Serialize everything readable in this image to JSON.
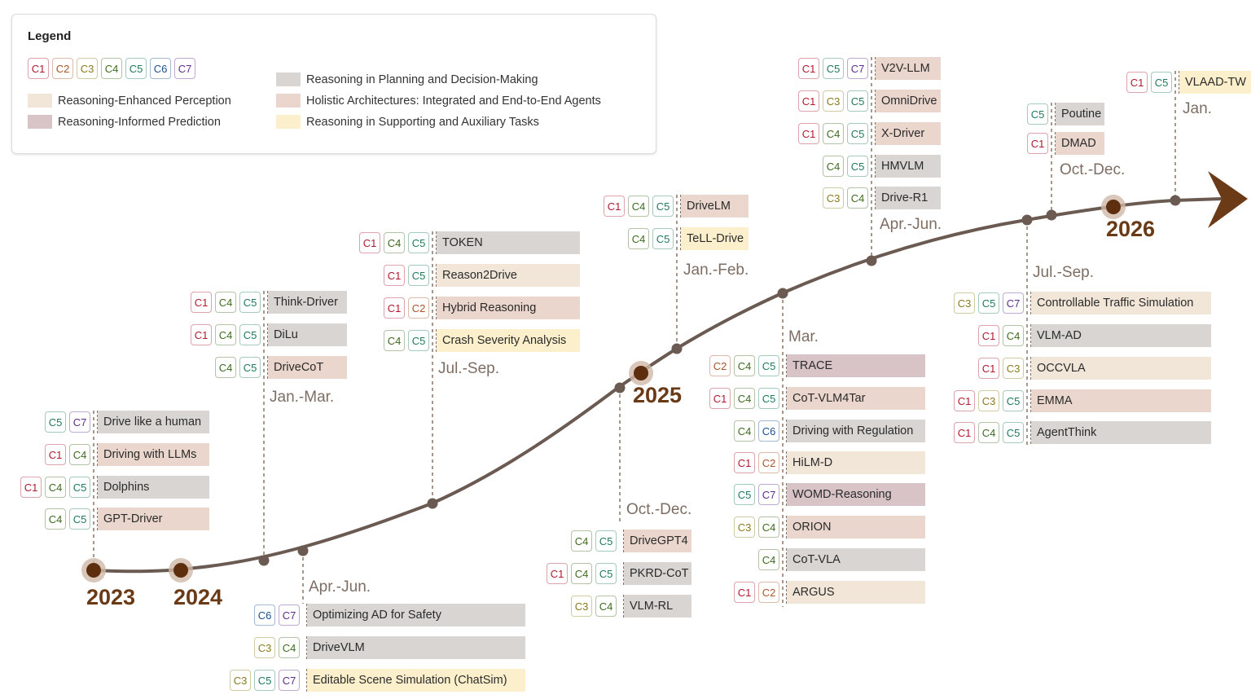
{
  "legend": {
    "title": "Legend",
    "chips": [
      "C1",
      "C2",
      "C3",
      "C4",
      "C5",
      "C6",
      "C7"
    ],
    "categories": [
      {
        "label": "Reasoning-Enhanced Perception",
        "color": "#f1e6d8"
      },
      {
        "label": "Reasoning-Informed Prediction",
        "color": "#d8c3c7"
      },
      {
        "label": "Reasoning in Planning and Decision-Making",
        "color": "#d9d5d2"
      },
      {
        "label": "Holistic Architectures: Integrated and End-to-End Agents",
        "color": "#ead6cc"
      },
      {
        "label": "Reasoning in Supporting and Auxiliary Tasks",
        "color": "#fcf0cc"
      }
    ]
  },
  "chip_colors": {
    "C1": "#b01a2e",
    "C2": "#a8552a",
    "C3": "#8a7a1f",
    "C4": "#3e6b1e",
    "C5": "#1f7a5a",
    "C6": "#1e4f8c",
    "C7": "#5c2e8c"
  },
  "years": [
    "2023",
    "2024",
    "2025",
    "2026"
  ],
  "periods": {
    "p2024a": "Jan.-Mar.",
    "p2024b": "Apr.-Jun.",
    "p2024c": "Jul.-Sep.",
    "p2024d": "Oct.-Dec.",
    "p2025a": "Jan.-Feb.",
    "p2025b": "Mar.",
    "p2025c": "Apr.-Jun.",
    "p2025d": "Jul.-Sep.",
    "p2025e": "Oct.-Dec.",
    "p2026a": "Jan."
  },
  "entries": [
    {
      "name": "Drive like a human",
      "tags": [
        "C5",
        "C7"
      ],
      "category": 2
    },
    {
      "name": "Driving with LLMs",
      "tags": [
        "C1",
        "C4"
      ],
      "category": 3
    },
    {
      "name": "Dolphins",
      "tags": [
        "C1",
        "C4",
        "C5"
      ],
      "category": 2
    },
    {
      "name": "GPT-Driver",
      "tags": [
        "C4",
        "C5"
      ],
      "category": 3
    },
    {
      "name": "Think-Driver",
      "tags": [
        "C1",
        "C4",
        "C5"
      ],
      "category": 2
    },
    {
      "name": "DiLu",
      "tags": [
        "C1",
        "C4",
        "C5"
      ],
      "category": 2
    },
    {
      "name": "DriveCoT",
      "tags": [
        "C4",
        "C5"
      ],
      "category": 3
    },
    {
      "name": "Optimizing AD for Safety",
      "tags": [
        "C6",
        "C7"
      ],
      "category": 2
    },
    {
      "name": "DriveVLM",
      "tags": [
        "C3",
        "C4"
      ],
      "category": 2
    },
    {
      "name": "Editable Scene Simulation (ChatSim)",
      "tags": [
        "C3",
        "C5",
        "C7"
      ],
      "category": 4
    },
    {
      "name": "TOKEN",
      "tags": [
        "C1",
        "C4",
        "C5"
      ],
      "category": 2
    },
    {
      "name": "Reason2Drive",
      "tags": [
        "C1",
        "C5"
      ],
      "category": 0
    },
    {
      "name": "Hybrid Reasoning",
      "tags": [
        "C1",
        "C2"
      ],
      "category": 3
    },
    {
      "name": "Crash Severity Analysis",
      "tags": [
        "C4",
        "C5"
      ],
      "category": 4
    },
    {
      "name": "DriveGPT4",
      "tags": [
        "C4",
        "C5"
      ],
      "category": 3
    },
    {
      "name": "PKRD-CoT",
      "tags": [
        "C1",
        "C4",
        "C5"
      ],
      "category": 2
    },
    {
      "name": "VLM-RL",
      "tags": [
        "C3",
        "C4"
      ],
      "category": 2
    },
    {
      "name": "DriveLM",
      "tags": [
        "C1",
        "C4",
        "C5"
      ],
      "category": 3
    },
    {
      "name": "TeLL-Drive",
      "tags": [
        "C4",
        "C5"
      ],
      "category": 4
    },
    {
      "name": "TRACE",
      "tags": [
        "C2",
        "C4",
        "C5"
      ],
      "category": 1
    },
    {
      "name": "CoT-VLM4Tar",
      "tags": [
        "C1",
        "C4",
        "C5"
      ],
      "category": 3
    },
    {
      "name": "Driving with Regulation",
      "tags": [
        "C4",
        "C6"
      ],
      "category": 2
    },
    {
      "name": "HiLM-D",
      "tags": [
        "C1",
        "C2"
      ],
      "category": 0
    },
    {
      "name": "WOMD-Reasoning",
      "tags": [
        "C5",
        "C7"
      ],
      "category": 1
    },
    {
      "name": "ORION",
      "tags": [
        "C3",
        "C4"
      ],
      "category": 3
    },
    {
      "name": "CoT-VLA",
      "tags": [
        "C4"
      ],
      "category": 2
    },
    {
      "name": "ARGUS",
      "tags": [
        "C1",
        "C2"
      ],
      "category": 0
    },
    {
      "name": "V2V-LLM",
      "tags": [
        "C1",
        "C5",
        "C7"
      ],
      "category": 3
    },
    {
      "name": "OmniDrive",
      "tags": [
        "C1",
        "C3",
        "C5"
      ],
      "category": 3
    },
    {
      "name": "X-Driver",
      "tags": [
        "C1",
        "C4",
        "C5"
      ],
      "category": 3
    },
    {
      "name": "HMVLM",
      "tags": [
        "C4",
        "C5"
      ],
      "category": 2
    },
    {
      "name": "Drive-R1",
      "tags": [
        "C3",
        "C4"
      ],
      "category": 2
    },
    {
      "name": "Poutine",
      "tags": [
        "C5"
      ],
      "category": 2
    },
    {
      "name": "DMAD",
      "tags": [
        "C1"
      ],
      "category": 3
    },
    {
      "name": "Controllable Traffic Simulation",
      "tags": [
        "C3",
        "C5",
        "C7"
      ],
      "category": 0
    },
    {
      "name": "VLM-AD",
      "tags": [
        "C1",
        "C4"
      ],
      "category": 2
    },
    {
      "name": "OCCVLA",
      "tags": [
        "C1",
        "C3"
      ],
      "category": 0
    },
    {
      "name": "EMMA",
      "tags": [
        "C1",
        "C3",
        "C5"
      ],
      "category": 3
    },
    {
      "name": "AgentThink",
      "tags": [
        "C1",
        "C4",
        "C5"
      ],
      "category": 2
    },
    {
      "name": "VLAAD-TW",
      "tags": [
        "C1",
        "C5"
      ],
      "category": 4
    }
  ]
}
